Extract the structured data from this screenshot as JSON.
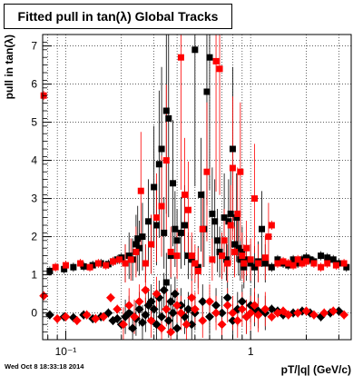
{
  "chart_data": {
    "type": "scatter",
    "title": "Fitted pull in tan(λ)  Global Tracks",
    "xlabel": "pT/|q| (GeV/c)",
    "ylabel": "pull in tan(λ)",
    "xscale": "log",
    "xlim": [
      0.075,
      3.5
    ],
    "ylim": [
      -0.7,
      7.3
    ],
    "grid": true,
    "x_ticks": [
      {
        "v": 0.1,
        "label": "10⁻¹"
      },
      {
        "v": 1,
        "label": "1"
      }
    ],
    "y_ticks": [
      0,
      1,
      2,
      3,
      4,
      5,
      6,
      7
    ],
    "series": [
      {
        "color": "#000000",
        "marker": "square",
        "points": [
          [
            0.082,
            1.1
          ],
          [
            0.098,
            1.15
          ],
          [
            0.11,
            1.2
          ],
          [
            0.125,
            1.22
          ],
          [
            0.14,
            1.25
          ],
          [
            0.155,
            1.3
          ],
          [
            0.17,
            1.28
          ],
          [
            0.18,
            1.35
          ],
          [
            0.19,
            1.4
          ],
          [
            0.2,
            1.45
          ],
          [
            0.21,
            1.3
          ],
          [
            0.22,
            1.5
          ],
          [
            0.23,
            1.4
          ],
          [
            0.24,
            1.8
          ],
          [
            0.245,
            1.95
          ],
          [
            0.25,
            1.7
          ],
          [
            0.26,
            2.0
          ],
          [
            0.27,
            1.3
          ],
          [
            0.28,
            2.4
          ],
          [
            0.29,
            1.8
          ],
          [
            0.3,
            3.3
          ],
          [
            0.31,
            2.3
          ],
          [
            0.32,
            3.9
          ],
          [
            0.33,
            4.3
          ],
          [
            0.34,
            2.1
          ],
          [
            0.35,
            5.3
          ],
          [
            0.36,
            5.1
          ],
          [
            0.37,
            1.5
          ],
          [
            0.38,
            3.4
          ],
          [
            0.39,
            2.2
          ],
          [
            0.4,
            1.9
          ],
          [
            0.42,
            2.1
          ],
          [
            0.44,
            2.3
          ],
          [
            0.46,
            1.5
          ],
          [
            0.48,
            1.4
          ],
          [
            0.5,
            6.9
          ],
          [
            0.52,
            1.2
          ],
          [
            0.54,
            3.1
          ],
          [
            0.56,
            2.2
          ],
          [
            0.58,
            5.8
          ],
          [
            0.6,
            6.7
          ],
          [
            0.62,
            2.6
          ],
          [
            0.64,
            2.4
          ],
          [
            0.66,
            1.9
          ],
          [
            0.68,
            1.6
          ],
          [
            0.7,
            1.5
          ],
          [
            0.72,
            2.5
          ],
          [
            0.74,
            1.4
          ],
          [
            0.76,
            2.4
          ],
          [
            0.78,
            2.6
          ],
          [
            0.8,
            4.3
          ],
          [
            0.82,
            1.8
          ],
          [
            0.84,
            2.5
          ],
          [
            0.86,
            1.7
          ],
          [
            0.88,
            1.4
          ],
          [
            0.9,
            1.6
          ],
          [
            0.92,
            1.2
          ],
          [
            0.95,
            1.4
          ],
          [
            1.0,
            1.3
          ],
          [
            1.05,
            1.2
          ],
          [
            1.1,
            1.35
          ],
          [
            1.15,
            2.2
          ],
          [
            1.2,
            1.3
          ],
          [
            1.3,
            1.2
          ],
          [
            1.4,
            1.4
          ],
          [
            1.5,
            1.3
          ],
          [
            1.6,
            1.25
          ],
          [
            1.7,
            1.4
          ],
          [
            1.8,
            1.3
          ],
          [
            1.9,
            1.4
          ],
          [
            2.0,
            1.45
          ],
          [
            2.1,
            1.4
          ],
          [
            2.2,
            1.35
          ],
          [
            2.4,
            1.5
          ],
          [
            2.6,
            1.45
          ],
          [
            2.8,
            1.4
          ],
          [
            3.0,
            1.3
          ],
          [
            3.3,
            1.2
          ],
          [
            0.082,
            -0.05
          ],
          [
            0.098,
            -0.1
          ],
          [
            0.11,
            -0.12
          ],
          [
            0.125,
            -0.05
          ],
          [
            0.14,
            -0.15
          ],
          [
            0.155,
            -0.1
          ],
          [
            0.17,
            0.0
          ],
          [
            0.18,
            -0.2
          ],
          [
            0.19,
            -0.15
          ],
          [
            0.2,
            -0.3
          ],
          [
            0.21,
            -0.1
          ],
          [
            0.22,
            0.0
          ],
          [
            0.23,
            -0.4
          ],
          [
            0.24,
            -0.15
          ],
          [
            0.25,
            0.1
          ],
          [
            0.26,
            -0.25
          ],
          [
            0.27,
            -0.05
          ],
          [
            0.28,
            0.2
          ],
          [
            0.29,
            0.3
          ],
          [
            0.3,
            0.1
          ],
          [
            0.31,
            -0.3
          ],
          [
            0.32,
            0.4
          ],
          [
            0.33,
            -0.1
          ],
          [
            0.34,
            0.6
          ],
          [
            0.35,
            0.8
          ],
          [
            0.36,
            -0.2
          ],
          [
            0.37,
            0.3
          ],
          [
            0.38,
            0.0
          ],
          [
            0.39,
            0.5
          ],
          [
            0.4,
            -0.4
          ],
          [
            0.42,
            0.2
          ],
          [
            0.44,
            -0.1
          ],
          [
            0.46,
            0.1
          ],
          [
            0.48,
            -0.3
          ],
          [
            0.5,
            0.0
          ],
          [
            0.55,
            0.3
          ],
          [
            0.6,
            -0.1
          ],
          [
            0.65,
            0.2
          ],
          [
            0.7,
            0.0
          ],
          [
            0.75,
            0.4
          ],
          [
            0.8,
            -0.2
          ],
          [
            0.85,
            0.1
          ],
          [
            0.9,
            0.3
          ],
          [
            0.95,
            -0.1
          ],
          [
            1.0,
            0.2
          ],
          [
            1.05,
            0.1
          ],
          [
            1.1,
            0.05
          ],
          [
            1.2,
            0.0
          ],
          [
            1.3,
            0.1
          ],
          [
            1.4,
            0.05
          ],
          [
            1.5,
            -0.05
          ],
          [
            1.7,
            0.0
          ],
          [
            1.9,
            0.05
          ],
          [
            2.1,
            0.0
          ],
          [
            2.4,
            -0.1
          ],
          [
            2.7,
            0.0
          ],
          [
            3.0,
            0.05
          ]
        ]
      },
      {
        "color": "#ff0000",
        "marker": "square",
        "points": [
          [
            0.076,
            5.7
          ],
          [
            0.088,
            1.2
          ],
          [
            0.1,
            1.25
          ],
          [
            0.12,
            1.3
          ],
          [
            0.135,
            1.2
          ],
          [
            0.15,
            1.3
          ],
          [
            0.165,
            1.25
          ],
          [
            0.18,
            1.35
          ],
          [
            0.195,
            1.4
          ],
          [
            0.21,
            1.3
          ],
          [
            0.225,
            1.4
          ],
          [
            0.24,
            1.6
          ],
          [
            0.255,
            3.2
          ],
          [
            0.27,
            1.3
          ],
          [
            0.29,
            1.8
          ],
          [
            0.31,
            2.5
          ],
          [
            0.33,
            2.8
          ],
          [
            0.35,
            4.0
          ],
          [
            0.37,
            1.6
          ],
          [
            0.4,
            1.5
          ],
          [
            0.42,
            6.7
          ],
          [
            0.44,
            3.1
          ],
          [
            0.46,
            2.7
          ],
          [
            0.48,
            1.5
          ],
          [
            0.5,
            1.3
          ],
          [
            0.52,
            1.1
          ],
          [
            0.55,
            2.2
          ],
          [
            0.58,
            3.7
          ],
          [
            0.62,
            1.4
          ],
          [
            0.65,
            6.6
          ],
          [
            0.68,
            6.4
          ],
          [
            0.7,
            1.5
          ],
          [
            0.72,
            1.9
          ],
          [
            0.75,
            1.3
          ],
          [
            0.78,
            2.3
          ],
          [
            0.8,
            3.8
          ],
          [
            0.82,
            1.6
          ],
          [
            0.85,
            2.6
          ],
          [
            0.88,
            3.7
          ],
          [
            0.9,
            1.5
          ],
          [
            0.92,
            1.3
          ],
          [
            0.95,
            1.7
          ],
          [
            1.0,
            1.4
          ],
          [
            1.05,
            3.0
          ],
          [
            1.1,
            1.3
          ],
          [
            1.2,
            1.45
          ],
          [
            1.25,
            2.0
          ],
          [
            1.3,
            2.3
          ],
          [
            1.4,
            1.3
          ],
          [
            1.5,
            1.35
          ],
          [
            1.6,
            1.3
          ],
          [
            1.7,
            1.25
          ],
          [
            1.8,
            1.4
          ],
          [
            1.9,
            1.3
          ],
          [
            2.0,
            1.35
          ],
          [
            2.2,
            1.3
          ],
          [
            2.4,
            1.2
          ],
          [
            2.6,
            1.3
          ],
          [
            2.9,
            1.25
          ],
          [
            3.2,
            1.3
          ],
          [
            0.076,
            0.45
          ],
          [
            0.09,
            -0.15
          ],
          [
            0.1,
            -0.1
          ],
          [
            0.115,
            -0.2
          ],
          [
            0.13,
            -0.05
          ],
          [
            0.145,
            -0.15
          ],
          [
            0.16,
            -0.1
          ],
          [
            0.175,
            0.4
          ],
          [
            0.19,
            0.1
          ],
          [
            0.205,
            -0.3
          ],
          [
            0.22,
            0.2
          ],
          [
            0.235,
            -0.1
          ],
          [
            0.25,
            0.3
          ],
          [
            0.27,
            0.6
          ],
          [
            0.29,
            -0.2
          ],
          [
            0.31,
            0.5
          ],
          [
            0.33,
            -0.4
          ],
          [
            0.35,
            0.1
          ],
          [
            0.37,
            -0.5
          ],
          [
            0.4,
            0.2
          ],
          [
            0.42,
            0.0
          ],
          [
            0.45,
            -0.3
          ],
          [
            0.48,
            0.4
          ],
          [
            0.5,
            0.1
          ],
          [
            0.55,
            -0.2
          ],
          [
            0.6,
            0.3
          ],
          [
            0.65,
            0.0
          ],
          [
            0.7,
            -0.3
          ],
          [
            0.75,
            0.2
          ],
          [
            0.8,
            0.0
          ],
          [
            0.85,
            -0.2
          ],
          [
            0.9,
            0.1
          ],
          [
            0.95,
            -0.1
          ],
          [
            1.0,
            0.0
          ],
          [
            1.05,
            0.2
          ],
          [
            1.1,
            -0.05
          ],
          [
            1.2,
            0.1
          ],
          [
            1.3,
            -0.1
          ],
          [
            1.4,
            0.0
          ],
          [
            1.5,
            0.05
          ],
          [
            1.6,
            -0.05
          ],
          [
            1.8,
            0.0
          ],
          [
            2.0,
            0.05
          ],
          [
            2.2,
            -0.05
          ],
          [
            2.5,
            0.0
          ],
          [
            2.8,
            0.05
          ],
          [
            3.2,
            -0.05
          ]
        ]
      }
    ]
  },
  "footer": {
    "timestamp": "Wed Oct  8 18:33:18 2014"
  }
}
